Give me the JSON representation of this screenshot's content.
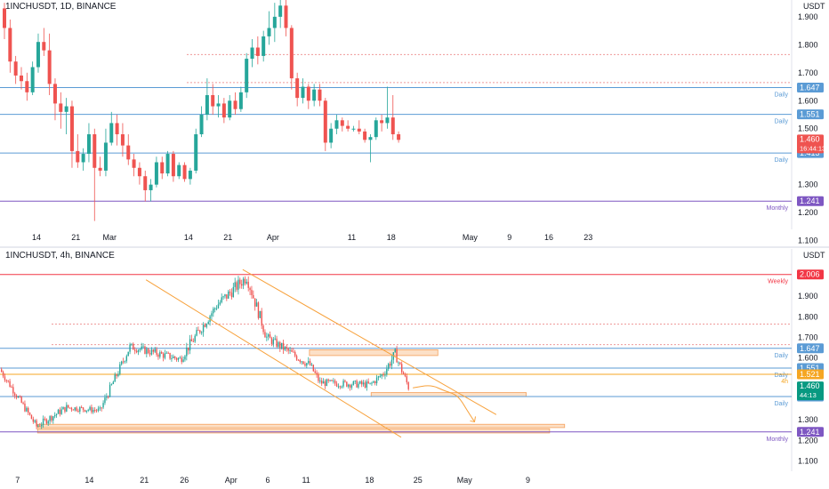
{
  "colors": {
    "up": "#26a69a",
    "down": "#ef5350",
    "daily_line": "#5b9bd5",
    "monthly_line": "#7e57c2",
    "weekly_line": "#f23645",
    "dotted_red": "#ef9a9a",
    "zone_fill": "#fbd6b4",
    "zone_stroke": "#f5a05a",
    "channel": "#f7a13b",
    "orange_level": "#f5a623",
    "axis_text": "#131722",
    "grid_sep": "#e0e3eb",
    "price_badge": "#ef5350",
    "teal_badge": "#089981"
  },
  "chart_data": [
    {
      "type": "candlestick",
      "title": "1INCHUSDT, 1D, BINANCE",
      "currency": "USDT",
      "ylim": [
        1.14,
        1.96
      ],
      "y_ticks": [
        "1.900",
        "1.800",
        "1.700",
        "1.600",
        "1.500",
        "1.300",
        "1.200",
        "1.100"
      ],
      "y_tick_values": [
        1.9,
        1.8,
        1.7,
        1.6,
        1.5,
        1.3,
        1.2,
        1.1
      ],
      "x_labels": [
        "14",
        "21",
        "Mar",
        "14",
        "21",
        "Apr",
        "11",
        "18",
        "May",
        "9",
        "16",
        "23"
      ],
      "x_label_slots": [
        6,
        13,
        19,
        33,
        40,
        48,
        62,
        69,
        83,
        90,
        97,
        104
      ],
      "levels": [
        {
          "value": 1.647,
          "label": "1.647",
          "tag": "Daily",
          "style": "daily"
        },
        {
          "value": 1.551,
          "label": "1.551",
          "tag": "Daily",
          "style": "daily"
        },
        {
          "value": 1.413,
          "label": "1.413",
          "tag": "Daily",
          "style": "daily"
        },
        {
          "value": 1.241,
          "label": "1.241",
          "tag": "Monthly",
          "style": "monthly"
        },
        {
          "value": 1.765,
          "label": "",
          "tag": "",
          "style": "dotted"
        },
        {
          "value": 1.665,
          "label": "",
          "tag": "",
          "style": "dotted"
        }
      ],
      "last_price": "1.460",
      "countdown": "16:44:13",
      "candles": [
        [
          1.93,
          1.95,
          1.82,
          1.86
        ],
        [
          1.86,
          1.89,
          1.7,
          1.74
        ],
        [
          1.74,
          1.76,
          1.66,
          1.69
        ],
        [
          1.69,
          1.72,
          1.64,
          1.67
        ],
        [
          1.67,
          1.7,
          1.6,
          1.63
        ],
        [
          1.63,
          1.74,
          1.62,
          1.72
        ],
        [
          1.72,
          1.84,
          1.7,
          1.81
        ],
        [
          1.81,
          1.86,
          1.76,
          1.78
        ],
        [
          1.78,
          1.84,
          1.62,
          1.66
        ],
        [
          1.66,
          1.68,
          1.53,
          1.59
        ],
        [
          1.59,
          1.63,
          1.5,
          1.56
        ],
        [
          1.56,
          1.61,
          1.48,
          1.58
        ],
        [
          1.58,
          1.6,
          1.36,
          1.42
        ],
        [
          1.42,
          1.48,
          1.36,
          1.38
        ],
        [
          1.38,
          1.43,
          1.35,
          1.41
        ],
        [
          1.41,
          1.52,
          1.38,
          1.48
        ],
        [
          1.48,
          1.5,
          1.17,
          1.36
        ],
        [
          1.36,
          1.4,
          1.33,
          1.35
        ],
        [
          1.35,
          1.5,
          1.33,
          1.45
        ],
        [
          1.45,
          1.56,
          1.44,
          1.52
        ],
        [
          1.52,
          1.55,
          1.44,
          1.48
        ],
        [
          1.48,
          1.52,
          1.4,
          1.44
        ],
        [
          1.44,
          1.48,
          1.37,
          1.39
        ],
        [
          1.39,
          1.41,
          1.33,
          1.36
        ],
        [
          1.36,
          1.38,
          1.3,
          1.33
        ],
        [
          1.33,
          1.35,
          1.24,
          1.28
        ],
        [
          1.28,
          1.32,
          1.24,
          1.3
        ],
        [
          1.3,
          1.4,
          1.29,
          1.38
        ],
        [
          1.38,
          1.4,
          1.32,
          1.34
        ],
        [
          1.34,
          1.42,
          1.33,
          1.41
        ],
        [
          1.41,
          1.42,
          1.31,
          1.33
        ],
        [
          1.33,
          1.38,
          1.32,
          1.37
        ],
        [
          1.37,
          1.38,
          1.31,
          1.32
        ],
        [
          1.32,
          1.36,
          1.3,
          1.35
        ],
        [
          1.35,
          1.5,
          1.34,
          1.48
        ],
        [
          1.48,
          1.58,
          1.47,
          1.55
        ],
        [
          1.55,
          1.68,
          1.53,
          1.62
        ],
        [
          1.62,
          1.66,
          1.55,
          1.58
        ],
        [
          1.58,
          1.62,
          1.54,
          1.59
        ],
        [
          1.59,
          1.61,
          1.52,
          1.54
        ],
        [
          1.54,
          1.62,
          1.53,
          1.6
        ],
        [
          1.6,
          1.63,
          1.55,
          1.57
        ],
        [
          1.57,
          1.65,
          1.56,
          1.63
        ],
        [
          1.63,
          1.77,
          1.61,
          1.75
        ],
        [
          1.75,
          1.82,
          1.72,
          1.79
        ],
        [
          1.79,
          1.83,
          1.73,
          1.76
        ],
        [
          1.76,
          1.85,
          1.74,
          1.83
        ],
        [
          1.83,
          1.92,
          1.8,
          1.86
        ],
        [
          1.86,
          1.95,
          1.81,
          1.9
        ],
        [
          1.9,
          1.96,
          1.86,
          1.94
        ],
        [
          1.94,
          1.96,
          1.83,
          1.86
        ],
        [
          1.86,
          1.87,
          1.64,
          1.68
        ],
        [
          1.68,
          1.7,
          1.58,
          1.61
        ],
        [
          1.61,
          1.68,
          1.59,
          1.65
        ],
        [
          1.65,
          1.66,
          1.57,
          1.6
        ],
        [
          1.6,
          1.66,
          1.58,
          1.64
        ],
        [
          1.64,
          1.66,
          1.58,
          1.6
        ],
        [
          1.6,
          1.61,
          1.42,
          1.45
        ],
        [
          1.45,
          1.52,
          1.43,
          1.5
        ],
        [
          1.5,
          1.55,
          1.48,
          1.53
        ],
        [
          1.53,
          1.54,
          1.49,
          1.51
        ],
        [
          1.51,
          1.53,
          1.49,
          1.5
        ],
        [
          1.5,
          1.51,
          1.49,
          1.5
        ],
        [
          1.5,
          1.53,
          1.48,
          1.49
        ],
        [
          1.49,
          1.5,
          1.45,
          1.46
        ],
        [
          1.46,
          1.48,
          1.38,
          1.47
        ],
        [
          1.47,
          1.54,
          1.46,
          1.53
        ],
        [
          1.53,
          1.55,
          1.49,
          1.52
        ],
        [
          1.52,
          1.65,
          1.5,
          1.54
        ],
        [
          1.54,
          1.62,
          1.46,
          1.48
        ],
        [
          1.48,
          1.49,
          1.45,
          1.46
        ]
      ]
    },
    {
      "type": "candlestick",
      "title": "1INCHUSDT, 4h, BINANCE",
      "currency": "USDT",
      "ylim": [
        1.05,
        2.13
      ],
      "y_ticks": [
        "1.900",
        "1.800",
        "1.700",
        "1.600",
        "1.300",
        "1.200",
        "1.100"
      ],
      "y_tick_values": [
        1.9,
        1.8,
        1.7,
        1.6,
        1.3,
        1.2,
        1.1
      ],
      "x_labels": [
        "7",
        "14",
        "21",
        "26",
        "Apr",
        "6",
        "11",
        "18",
        "25",
        "May",
        "9"
      ],
      "x_label_slots": [
        10,
        53,
        86,
        110,
        138,
        160,
        183,
        221,
        250,
        278,
        316
      ],
      "levels": [
        {
          "value": 2.006,
          "label": "2.006",
          "tag": "Weekly",
          "style": "weekly"
        },
        {
          "value": 1.647,
          "label": "1.647",
          "tag": "Daily",
          "style": "daily"
        },
        {
          "value": 1.551,
          "label": "1.551",
          "tag": "Daily",
          "style": "daily"
        },
        {
          "value": 1.413,
          "label": "1.413",
          "tag": "Daily",
          "style": "daily"
        },
        {
          "value": 1.241,
          "label": "1.241",
          "tag": "Monthly",
          "style": "monthly"
        },
        {
          "value": 1.521,
          "label": "1.521",
          "tag": "4h",
          "style": "orange"
        },
        {
          "value": 1.765,
          "label": "",
          "tag": "",
          "style": "dotted"
        },
        {
          "value": 1.665,
          "label": "",
          "tag": "",
          "style": "dotted"
        }
      ],
      "last_price": "1.460",
      "countdown": "44:13",
      "zones": [
        {
          "from_slot": 185,
          "to_slot": 262,
          "y_top": 1.64,
          "y_bottom": 1.612
        },
        {
          "from_slot": 222,
          "to_slot": 315,
          "y_top": 1.432,
          "y_bottom": 1.413
        },
        {
          "from_slot": 22,
          "to_slot": 338,
          "y_top": 1.278,
          "y_bottom": 1.262
        },
        {
          "from_slot": 22,
          "to_slot": 329,
          "y_top": 1.256,
          "y_bottom": 1.236
        }
      ],
      "channel_upper": [
        [
          145,
          2.03
        ],
        [
          297,
          1.325
        ]
      ],
      "channel_lower": [
        [
          87,
          1.98
        ],
        [
          240,
          1.215
        ]
      ],
      "projection": [
        [
          247,
          1.455
        ],
        [
          258,
          1.47
        ],
        [
          266,
          1.44
        ],
        [
          274,
          1.42
        ],
        [
          280,
          1.34
        ],
        [
          284,
          1.29
        ]
      ],
      "segments": [
        {
          "slots": [
            0,
            22
          ],
          "start": 1.545,
          "end": 1.268,
          "noise": 0.018
        },
        {
          "slots": [
            22,
            40
          ],
          "start": 1.268,
          "end": 1.36,
          "noise": 0.018
        },
        {
          "slots": [
            40,
            60
          ],
          "start": 1.36,
          "end": 1.345,
          "noise": 0.015
        },
        {
          "slots": [
            60,
            78
          ],
          "start": 1.345,
          "end": 1.655,
          "noise": 0.022
        },
        {
          "slots": [
            78,
            108
          ],
          "start": 1.655,
          "end": 1.595,
          "noise": 0.02
        },
        {
          "slots": [
            108,
            130
          ],
          "start": 1.595,
          "end": 1.855,
          "noise": 0.026
        },
        {
          "slots": [
            130,
            148
          ],
          "start": 1.855,
          "end": 1.995,
          "noise": 0.03
        },
        {
          "slots": [
            148,
            160
          ],
          "start": 1.995,
          "end": 1.7,
          "noise": 0.03
        },
        {
          "slots": [
            160,
            186
          ],
          "start": 1.7,
          "end": 1.565,
          "noise": 0.022
        },
        {
          "slots": [
            186,
            192
          ],
          "start": 1.565,
          "end": 1.48,
          "noise": 0.02
        },
        {
          "slots": [
            192,
            222
          ],
          "start": 1.48,
          "end": 1.47,
          "noise": 0.018
        },
        {
          "slots": [
            222,
            230
          ],
          "start": 1.47,
          "end": 1.525,
          "noise": 0.018
        },
        {
          "slots": [
            230,
            237
          ],
          "start": 1.525,
          "end": 1.62,
          "noise": 0.025
        },
        {
          "slots": [
            237,
            245
          ],
          "start": 1.62,
          "end": 1.46,
          "noise": 0.022
        }
      ]
    }
  ]
}
